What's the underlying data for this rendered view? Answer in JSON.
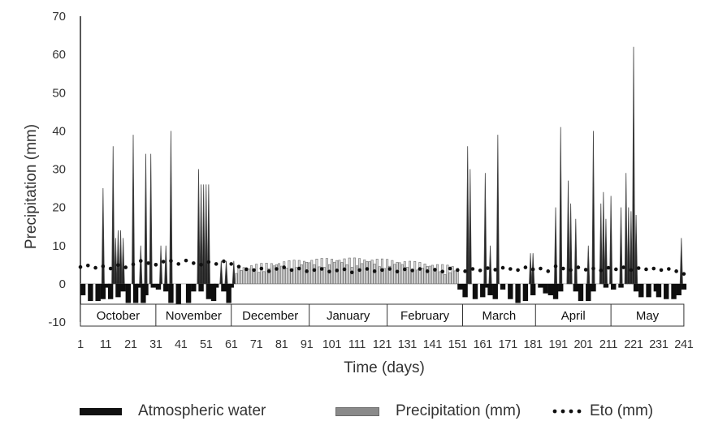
{
  "chart_data": {
    "type": "bar",
    "xlabel": "Time (days)",
    "ylabel": "Precipitation (mm)",
    "ylim": [
      -10,
      70
    ],
    "yticks": [
      -10,
      0,
      10,
      20,
      30,
      40,
      50,
      60,
      70
    ],
    "xlim": [
      1,
      242
    ],
    "xticks": [
      1,
      11,
      21,
      31,
      41,
      51,
      61,
      71,
      81,
      91,
      101,
      111,
      121,
      131,
      141,
      151,
      161,
      171,
      181,
      191,
      201,
      211,
      221,
      231,
      241
    ],
    "xtick_labels": [
      "1",
      "11",
      "21",
      "31",
      "41",
      "51",
      "61",
      "71",
      "81",
      "91",
      "101",
      "111",
      "121",
      "131",
      "141",
      "151",
      "161",
      "171",
      "181",
      "191",
      "201",
      "211",
      "221",
      "231",
      "241"
    ],
    "months": [
      "October",
      "November",
      "December",
      "January",
      "February",
      "March",
      "April",
      "May"
    ],
    "month_bounds": [
      1,
      31,
      61,
      92,
      123,
      153,
      182,
      212,
      241
    ],
    "legend": [
      "Atmospheric water",
      "Precipitation (mm)",
      "Eto (mm)"
    ],
    "series": [
      {
        "name": "Atmospheric water",
        "kind": "area",
        "color": "#111111",
        "values": [
          [
            2,
            -3
          ],
          [
            5,
            -4.5
          ],
          [
            8,
            -4.5
          ],
          [
            10,
            -4
          ],
          [
            12,
            -1
          ],
          [
            13,
            -4
          ],
          [
            16,
            -3.5
          ],
          [
            18,
            -2
          ],
          [
            20,
            -5
          ],
          [
            23,
            -5
          ],
          [
            24,
            -1
          ],
          [
            26,
            -5
          ],
          [
            27,
            -3
          ],
          [
            30,
            -1
          ],
          [
            32,
            -1.5
          ],
          [
            35,
            -2
          ],
          [
            37,
            -5
          ],
          [
            40,
            -5.5
          ],
          [
            44,
            -5
          ],
          [
            46,
            -2
          ],
          [
            49,
            -2
          ],
          [
            52,
            -4
          ],
          [
            54,
            -4.5
          ],
          [
            55,
            -1
          ],
          [
            58,
            -2
          ],
          [
            60,
            -5
          ],
          [
            61,
            -1
          ],
          [
            152,
            -1.5
          ],
          [
            154,
            -3.5
          ],
          [
            158,
            -4
          ],
          [
            161,
            -3.5
          ],
          [
            163,
            -1
          ],
          [
            164,
            -3
          ],
          [
            166,
            -4
          ],
          [
            169,
            -1.5
          ],
          [
            172,
            -4
          ],
          [
            175,
            -5
          ],
          [
            178,
            -4.5
          ],
          [
            181,
            -3
          ],
          [
            184,
            -1
          ],
          [
            186,
            -2.5
          ],
          [
            188,
            -3
          ],
          [
            190,
            -4
          ],
          [
            192,
            -2
          ],
          [
            198,
            -2
          ],
          [
            200,
            -4.5
          ],
          [
            203,
            -4.5
          ],
          [
            205,
            -2
          ],
          [
            210,
            -1
          ],
          [
            213,
            -1.5
          ],
          [
            216,
            -1
          ],
          [
            222,
            -2
          ],
          [
            224,
            -3.5
          ],
          [
            227,
            -3.5
          ],
          [
            230,
            -2
          ],
          [
            231,
            -3.5
          ],
          [
            234,
            -4
          ],
          [
            237,
            -4
          ],
          [
            239,
            -3
          ],
          [
            241,
            -1.5
          ]
        ]
      },
      {
        "name": "Precipitation (mm)",
        "kind": "bar",
        "color": "#3a3a3a",
        "values": [
          [
            10,
            25
          ],
          [
            14,
            36
          ],
          [
            15,
            12
          ],
          [
            16,
            14
          ],
          [
            17,
            14
          ],
          [
            18,
            12
          ],
          [
            22,
            39
          ],
          [
            25,
            10
          ],
          [
            27,
            34
          ],
          [
            29,
            34
          ],
          [
            33,
            10
          ],
          [
            35,
            10
          ],
          [
            37,
            40
          ],
          [
            48,
            30
          ],
          [
            49,
            26
          ],
          [
            50,
            26
          ],
          [
            51,
            26
          ],
          [
            52,
            26
          ],
          [
            57,
            6
          ],
          [
            59,
            6
          ],
          [
            62,
            6
          ],
          [
            155,
            36
          ],
          [
            156,
            30
          ],
          [
            162,
            29
          ],
          [
            164,
            10
          ],
          [
            167,
            39
          ],
          [
            180,
            8
          ],
          [
            181,
            8
          ],
          [
            190,
            20
          ],
          [
            192,
            41
          ],
          [
            195,
            27
          ],
          [
            196,
            21
          ],
          [
            198,
            17
          ],
          [
            203,
            10
          ],
          [
            205,
            40
          ],
          [
            208,
            21
          ],
          [
            209,
            24
          ],
          [
            210,
            17
          ],
          [
            212,
            23
          ],
          [
            216,
            20
          ],
          [
            218,
            29
          ],
          [
            219,
            20
          ],
          [
            220,
            19
          ],
          [
            221,
            62
          ],
          [
            222,
            18
          ],
          [
            240,
            12
          ]
        ]
      },
      {
        "name": "Eto (mm)",
        "kind": "dots",
        "color": "#111111",
        "values": [
          [
            1,
            4.4
          ],
          [
            4,
            4.8
          ],
          [
            7,
            4.2
          ],
          [
            10,
            4.6
          ],
          [
            13,
            4.0
          ],
          [
            16,
            4.9
          ],
          [
            19,
            4.3
          ],
          [
            22,
            5.1
          ],
          [
            25,
            6.0
          ],
          [
            28,
            5.4
          ],
          [
            31,
            5.0
          ],
          [
            34,
            5.8
          ],
          [
            37,
            6.0
          ],
          [
            40,
            5.2
          ],
          [
            43,
            6.1
          ],
          [
            46,
            5.4
          ],
          [
            49,
            5.0
          ],
          [
            52,
            5.7
          ],
          [
            55,
            5.2
          ],
          [
            58,
            5.9
          ],
          [
            61,
            5.2
          ],
          [
            64,
            4.5
          ],
          [
            67,
            3.8
          ],
          [
            70,
            3.6
          ],
          [
            73,
            4.0
          ],
          [
            76,
            3.3
          ],
          [
            79,
            3.9
          ],
          [
            82,
            4.3
          ],
          [
            85,
            3.6
          ],
          [
            88,
            4.0
          ],
          [
            91,
            3.3
          ],
          [
            94,
            3.6
          ],
          [
            97,
            3.9
          ],
          [
            100,
            3.2
          ],
          [
            103,
            3.5
          ],
          [
            106,
            3.8
          ],
          [
            109,
            3.0
          ],
          [
            112,
            3.6
          ],
          [
            115,
            3.9
          ],
          [
            118,
            3.3
          ],
          [
            121,
            3.6
          ],
          [
            124,
            3.9
          ],
          [
            127,
            3.2
          ],
          [
            130,
            3.8
          ],
          [
            133,
            3.5
          ],
          [
            136,
            3.9
          ],
          [
            139,
            3.3
          ],
          [
            142,
            3.7
          ],
          [
            145,
            3.2
          ],
          [
            148,
            4.0
          ],
          [
            151,
            3.6
          ],
          [
            154,
            3.3
          ],
          [
            157,
            3.9
          ],
          [
            160,
            3.5
          ],
          [
            163,
            4.1
          ],
          [
            166,
            3.7
          ],
          [
            169,
            4.2
          ],
          [
            172,
            3.9
          ],
          [
            175,
            3.6
          ],
          [
            178,
            4.3
          ],
          [
            181,
            3.8
          ],
          [
            184,
            4.0
          ],
          [
            187,
            3.3
          ],
          [
            190,
            4.6
          ],
          [
            193,
            4.0
          ],
          [
            196,
            3.6
          ],
          [
            199,
            4.3
          ],
          [
            202,
            3.7
          ],
          [
            205,
            4.0
          ],
          [
            208,
            3.5
          ],
          [
            211,
            4.2
          ],
          [
            214,
            3.8
          ],
          [
            217,
            4.3
          ],
          [
            220,
            3.6
          ],
          [
            223,
            4.1
          ],
          [
            226,
            3.8
          ],
          [
            229,
            4.0
          ],
          [
            232,
            3.6
          ],
          [
            235,
            3.9
          ],
          [
            238,
            3.3
          ],
          [
            241,
            2.6
          ]
        ]
      },
      {
        "name": "Precipitation (mm) drizzle",
        "kind": "drizzle",
        "color": "#777777",
        "ranges": [
          [
            63,
            151
          ]
        ],
        "note_values": "small daily bars, roughly 2 to 7 mm"
      }
    ]
  }
}
